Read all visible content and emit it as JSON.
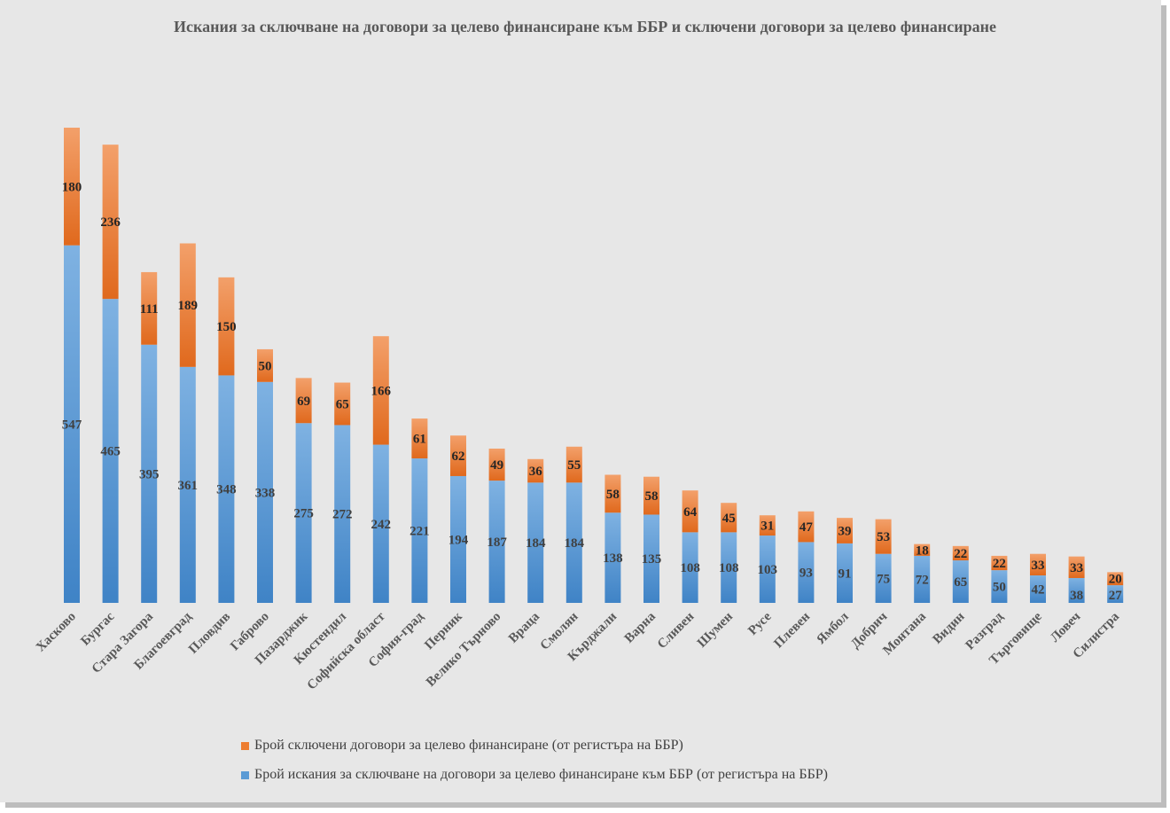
{
  "chart_data": {
    "type": "bar",
    "stacked": true,
    "title": "Искания за сключване на договори за целево финансиране към ББР и сключени договори за целево финансиране",
    "xlabel": "",
    "ylabel": "",
    "grid": false,
    "legend_position": "bottom",
    "categories": [
      "Хасково",
      "Бургас",
      "Стара Загора",
      "Благоевград",
      "Пловдив",
      "Габрово",
      "Пазарджик",
      "Кюстендил",
      "Софийска област",
      "София-град",
      "Перник",
      "Велико Търново",
      "Враца",
      "Смолян",
      "Кърджали",
      "Варна",
      "Сливен",
      "Шумен",
      "Русе",
      "Плевен",
      "Ямбол",
      "Добрич",
      "Монтана",
      "Видин",
      "Разград",
      "Търговище",
      "Ловеч",
      "Силистра"
    ],
    "series": [
      {
        "name": "Брой искания за сключване на договори за целево финансиране към ББР (от регистъра на ББР)",
        "color": "#5b9bd5",
        "values": [
          547,
          465,
          395,
          361,
          348,
          338,
          275,
          272,
          242,
          221,
          194,
          187,
          184,
          184,
          138,
          135,
          108,
          108,
          103,
          93,
          91,
          75,
          72,
          65,
          50,
          42,
          38,
          27
        ]
      },
      {
        "name": "Брой сключени договори за целево финансиране (от регистъра на ББР)",
        "color": "#ed7d31",
        "values": [
          180,
          236,
          111,
          189,
          150,
          50,
          69,
          65,
          166,
          61,
          62,
          49,
          36,
          55,
          58,
          58,
          64,
          45,
          31,
          47,
          39,
          53,
          18,
          22,
          22,
          33,
          33,
          20
        ]
      }
    ]
  }
}
